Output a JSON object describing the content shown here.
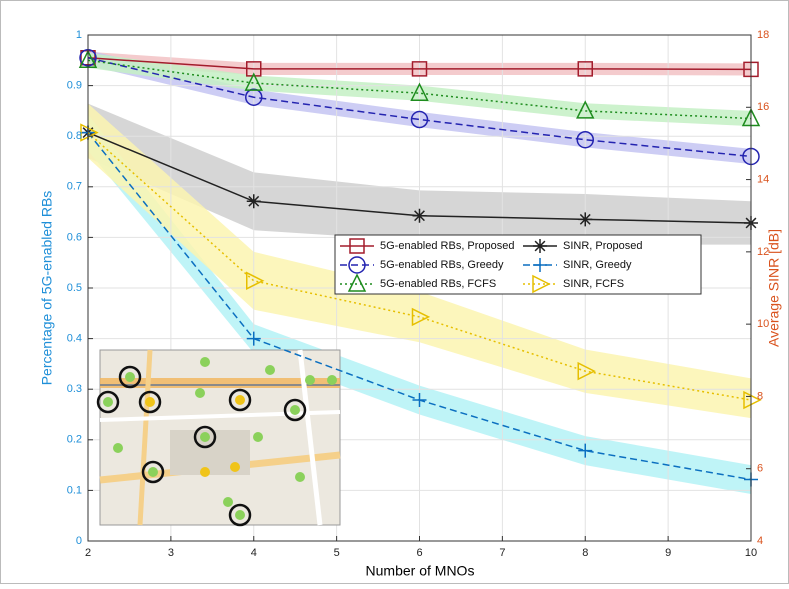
{
  "chart_data": {
    "type": "line",
    "xlabel": "Number of MNOs",
    "ylabel": "Percentage of 5G-enabled RBs",
    "y2label": "Average SINR [dB]",
    "ylabel_color": "#1f8fd8",
    "y2label_color": "#d9531e",
    "x": [
      2,
      4,
      6,
      8,
      10
    ],
    "xlim": [
      2,
      10
    ],
    "xticks": [
      2,
      3,
      4,
      5,
      6,
      7,
      8,
      9,
      10
    ],
    "ylim": [
      0,
      1
    ],
    "yticks": [
      0,
      0.1,
      0.2,
      0.3,
      0.4,
      0.5,
      0.6,
      0.7,
      0.8,
      0.9,
      1
    ],
    "y2lim": [
      4,
      18
    ],
    "y2ticks": [
      4,
      6,
      8,
      10,
      12,
      14,
      16,
      18
    ],
    "grid": true,
    "series": [
      {
        "name": "5G-enabled RBs, Proposed",
        "color": "#a31c2c",
        "band_color": "#f2c2c4",
        "marker": "square",
        "dash": "solid",
        "values": [
          0.955,
          0.933,
          0.933,
          0.933,
          0.932
        ],
        "lower": [
          0.943,
          0.921,
          0.921,
          0.921,
          0.92
        ],
        "upper": [
          0.967,
          0.945,
          0.945,
          0.945,
          0.944
        ]
      },
      {
        "name": "5G-enabled RBs, Greedy",
        "color": "#2424b0",
        "band_color": "#c4c4f2",
        "marker": "circle",
        "dash": "dashed",
        "values": [
          0.955,
          0.877,
          0.833,
          0.793,
          0.76
        ],
        "lower": [
          0.94,
          0.862,
          0.818,
          0.778,
          0.745
        ],
        "upper": [
          0.97,
          0.892,
          0.848,
          0.808,
          0.775
        ]
      },
      {
        "name": "5G-enabled RBs, FCFS",
        "color": "#1e8c1e",
        "band_color": "#c4f0c4",
        "marker": "triangle",
        "dash": "dotted",
        "values": [
          0.95,
          0.905,
          0.885,
          0.85,
          0.835
        ],
        "lower": [
          0.935,
          0.89,
          0.87,
          0.835,
          0.82
        ],
        "upper": [
          0.965,
          0.92,
          0.9,
          0.865,
          0.85
        ]
      },
      {
        "name": "SINR, Proposed",
        "color": "#222222",
        "band_color": "#cfcfcf",
        "marker": "star",
        "dash": "solid",
        "axis": "y2",
        "values": [
          15.3,
          13.4,
          13.0,
          12.9,
          12.8
        ],
        "lower": [
          14.6,
          12.6,
          12.3,
          12.2,
          12.2
        ],
        "upper": [
          16.1,
          14.2,
          13.7,
          13.6,
          13.4
        ]
      },
      {
        "name": "SINR, Greedy",
        "color": "#0b6fc0",
        "band_color": "#b4f2f6",
        "marker": "plus",
        "dash": "dashed",
        "axis": "y2",
        "values": [
          15.3,
          9.6,
          7.9,
          6.5,
          5.7
        ],
        "lower": [
          14.8,
          9.2,
          7.5,
          6.1,
          5.3
        ],
        "upper": [
          15.8,
          10.0,
          8.3,
          6.9,
          6.1
        ]
      },
      {
        "name": "SINR, FCFS",
        "color": "#e6bf00",
        "band_color": "#fbf5b0",
        "marker": "triangle-right",
        "dash": "dotted",
        "axis": "y2",
        "values": [
          15.3,
          11.2,
          10.2,
          8.7,
          7.9
        ],
        "lower": [
          14.6,
          10.4,
          9.5,
          8.1,
          7.4
        ],
        "upper": [
          16.1,
          12.0,
          10.9,
          9.3,
          8.5
        ]
      }
    ]
  }
}
